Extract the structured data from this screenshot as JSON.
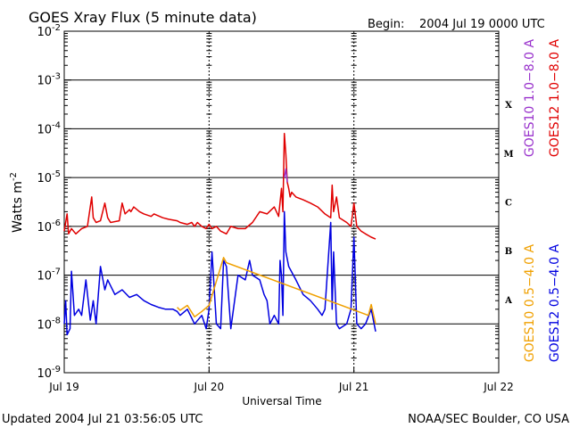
{
  "chart_data": {
    "type": "line",
    "title": "GOES Xray Flux (5 minute data)",
    "begin_label": "Begin:",
    "begin_value": "2004 Jul 19 0000 UTC",
    "xlabel": "Universal Time",
    "ylabel": "Watts m",
    "ylabel_exponent": "-2",
    "ylim_exponents": [
      -9,
      -2
    ],
    "y_scale": "log",
    "y_ticks": [
      {
        "base": "10",
        "exp": "-2",
        "value": -2
      },
      {
        "base": "10",
        "exp": "-3",
        "value": -3
      },
      {
        "base": "10",
        "exp": "-4",
        "value": -4
      },
      {
        "base": "10",
        "exp": "-5",
        "value": -5
      },
      {
        "base": "10",
        "exp": "-6",
        "value": -6
      },
      {
        "base": "10",
        "exp": "-7",
        "value": -7
      },
      {
        "base": "10",
        "exp": "-8",
        "value": -8
      },
      {
        "base": "10",
        "exp": "-9",
        "value": -9
      }
    ],
    "x_ticks": [
      "Jul 19",
      "Jul 20",
      "Jul 21",
      "Jul 22"
    ],
    "xlim_days": [
      0,
      3
    ],
    "flare_classes": [
      {
        "label": "X",
        "log_low": -4
      },
      {
        "label": "M",
        "log_low": -5
      },
      {
        "label": "C",
        "log_low": -6
      },
      {
        "label": "B",
        "log_low": -7
      },
      {
        "label": "A",
        "log_low": -8
      }
    ],
    "grid": "horizontal at each decade; dotted day separators",
    "colors": {
      "goes10_long": "#9932cc",
      "goes12_long": "#e00000",
      "goes10_short": "#f0a000",
      "goes12_short": "#0000e0"
    },
    "series": [
      {
        "name": "GOES12 1.0-8.0 A",
        "color_key": "goes12_long",
        "x_days": [
          0.0,
          0.02,
          0.03,
          0.05,
          0.08,
          0.12,
          0.16,
          0.19,
          0.2,
          0.22,
          0.25,
          0.28,
          0.3,
          0.32,
          0.38,
          0.4,
          0.42,
          0.45,
          0.46,
          0.48,
          0.52,
          0.55,
          0.6,
          0.62,
          0.68,
          0.72,
          0.78,
          0.8,
          0.85,
          0.88,
          0.9,
          0.92,
          0.95,
          0.98,
          1.0,
          1.02,
          1.05,
          1.08,
          1.12,
          1.15,
          1.2,
          1.25,
          1.3,
          1.35,
          1.4,
          1.45,
          1.48,
          1.5,
          1.51,
          1.52,
          1.53,
          1.54,
          1.55,
          1.56,
          1.57,
          1.6,
          1.65,
          1.7,
          1.75,
          1.8,
          1.84,
          1.85,
          1.86,
          1.88,
          1.9,
          1.95,
          1.98,
          2.0,
          2.02,
          2.05,
          2.08,
          2.12,
          2.15
        ],
        "values": [
          8e-07,
          1.8e-06,
          7e-07,
          9e-07,
          7e-07,
          9e-07,
          1e-06,
          4e-06,
          1.5e-06,
          1.2e-06,
          1.3e-06,
          3e-06,
          1.5e-06,
          1.2e-06,
          1.3e-06,
          3e-06,
          1.8e-06,
          2.2e-06,
          2e-06,
          2.5e-06,
          2e-06,
          1.8e-06,
          1.6e-06,
          1.8e-06,
          1.5e-06,
          1.4e-06,
          1.3e-06,
          1.2e-06,
          1.1e-06,
          1.2e-06,
          1e-06,
          1.2e-06,
          1e-06,
          9e-07,
          1.1e-06,
          9e-07,
          1e-06,
          8e-07,
          7e-07,
          1e-06,
          9e-07,
          9e-07,
          1.2e-06,
          2e-06,
          1.8e-06,
          2.5e-06,
          1.6e-06,
          6e-06,
          2e-06,
          8e-05,
          3e-05,
          8e-06,
          6e-06,
          4e-06,
          5e-06,
          4e-06,
          3.5e-06,
          3e-06,
          2.5e-06,
          1.8e-06,
          1.5e-06,
          7e-06,
          2e-06,
          4e-06,
          1.5e-06,
          1.2e-06,
          1e-06,
          3e-06,
          1e-06,
          8e-07,
          7e-07,
          6e-07,
          5.5e-07
        ]
      },
      {
        "name": "GOES10 1.0-8.0 A",
        "color_key": "goes10_long",
        "x_days": [
          1.52,
          1.53,
          1.54
        ],
        "values": [
          1e-05,
          1.5e-05,
          8e-06
        ]
      },
      {
        "name": "GOES12 0.5-4.0 A",
        "color_key": "goes12_short",
        "x_days": [
          0.0,
          0.01,
          0.02,
          0.04,
          0.05,
          0.07,
          0.1,
          0.12,
          0.15,
          0.18,
          0.2,
          0.22,
          0.25,
          0.28,
          0.3,
          0.35,
          0.4,
          0.45,
          0.5,
          0.55,
          0.6,
          0.65,
          0.7,
          0.75,
          0.78,
          0.8,
          0.85,
          0.9,
          0.95,
          0.98,
          1.0,
          1.02,
          1.05,
          1.08,
          1.1,
          1.12,
          1.15,
          1.2,
          1.25,
          1.28,
          1.3,
          1.35,
          1.38,
          1.4,
          1.42,
          1.45,
          1.48,
          1.49,
          1.5,
          1.51,
          1.52,
          1.53,
          1.55,
          1.6,
          1.65,
          1.7,
          1.75,
          1.78,
          1.8,
          1.84,
          1.85,
          1.86,
          1.88,
          1.9,
          1.95,
          1.98,
          2.0,
          2.02,
          2.05,
          2.08,
          2.12,
          2.15
        ],
        "values": [
          1e-08,
          3e-08,
          6e-09,
          8e-09,
          1.2e-07,
          1.5e-08,
          2e-08,
          1.5e-08,
          8e-08,
          1.2e-08,
          3e-08,
          1e-08,
          1.5e-07,
          5e-08,
          8e-08,
          4e-08,
          5e-08,
          3.5e-08,
          4e-08,
          3e-08,
          2.5e-08,
          2.2e-08,
          2e-08,
          2e-08,
          1.8e-08,
          1.5e-08,
          2e-08,
          1e-08,
          1.5e-08,
          8e-09,
          2e-08,
          3e-07,
          1e-08,
          8e-09,
          2e-07,
          1.5e-07,
          8e-09,
          1e-07,
          8e-08,
          2e-07,
          1e-07,
          8e-08,
          4e-08,
          3e-08,
          1e-08,
          1.5e-08,
          1e-08,
          2e-07,
          1e-07,
          1.5e-08,
          2e-06,
          3e-07,
          1.5e-07,
          8e-08,
          4e-08,
          3e-08,
          2e-08,
          1.5e-08,
          2e-08,
          1.2e-06,
          2e-08,
          3e-07,
          1e-08,
          8e-09,
          1e-08,
          2e-08,
          6e-07,
          1e-08,
          8e-09,
          1e-08,
          2e-08,
          7e-09
        ]
      },
      {
        "name": "GOES10 0.5-4.0 A",
        "color_key": "goes10_short",
        "x_days": [
          0.78,
          0.8,
          0.85,
          0.9,
          0.95,
          1.0,
          1.1,
          1.12,
          2.1,
          2.12,
          2.15
        ],
        "values": [
          2.2e-08,
          1.9e-08,
          2.4e-08,
          1.4e-08,
          1.8e-08,
          2.4e-08,
          2.3e-07,
          1.8e-07,
          1.5e-08,
          2.5e-08,
          1e-08
        ]
      }
    ],
    "legend": [
      {
        "label": "GOES10 1.0−8.0 A",
        "color_key": "goes10_long"
      },
      {
        "label": "GOES12 1.0−8.0 A",
        "color_key": "goes12_long"
      },
      {
        "label": "GOES10 0.5−4.0 A",
        "color_key": "goes10_short"
      },
      {
        "label": "GOES12 0.5−4.0 A",
        "color_key": "goes12_short"
      }
    ],
    "legend_placement": "right, vertical"
  },
  "footer": {
    "updated": "Updated 2004 Jul 21 03:56:05 UTC",
    "source": "NOAA/SEC Boulder, CO USA"
  }
}
